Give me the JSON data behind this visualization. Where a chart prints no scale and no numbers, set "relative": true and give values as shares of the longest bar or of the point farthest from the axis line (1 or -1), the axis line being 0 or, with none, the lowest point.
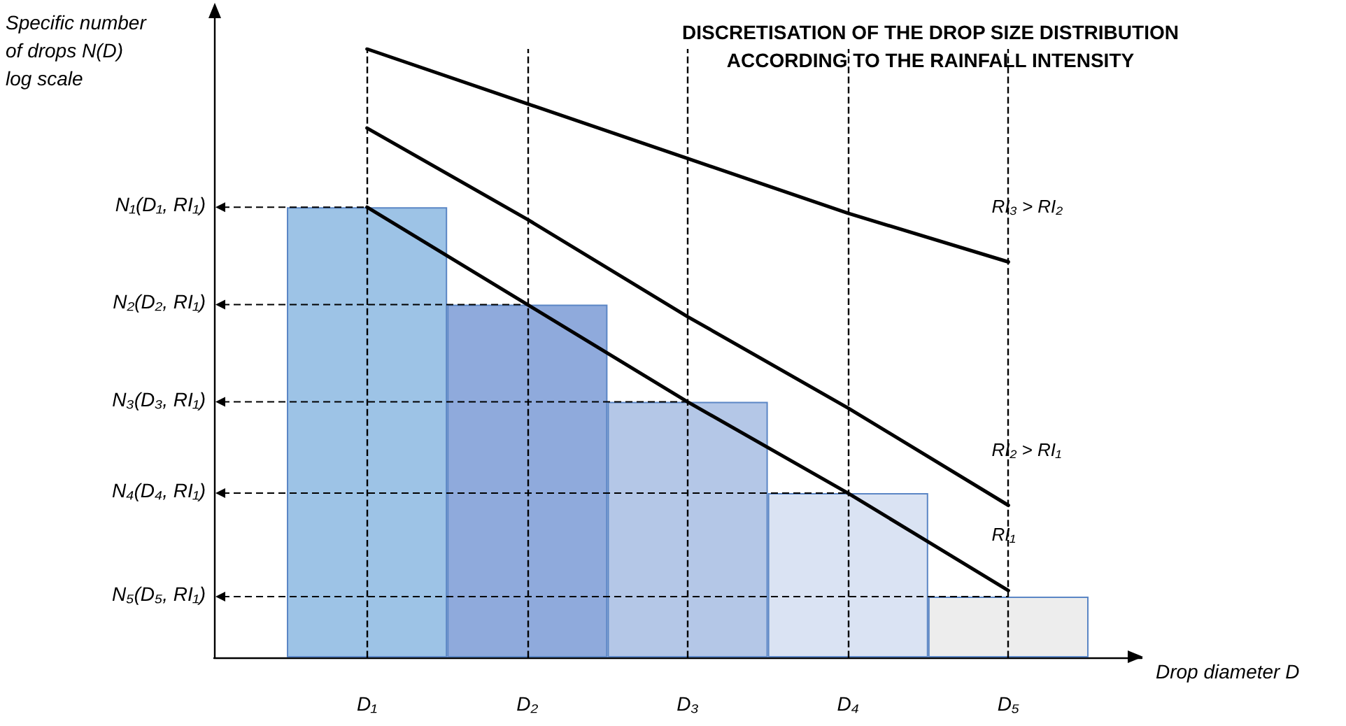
{
  "chart_data": {
    "type": "bar",
    "relative": true,
    "title": "DISCRETISATION OF THE DROP SIZE DISTRIBUTION\nACCORDING TO THE RAINFALL INTENSITY",
    "xlabel": "Drop diameter D",
    "ylabel": "Specific number\nof drops N(D)\nlog scale",
    "categories": [
      "D₁",
      "D₂",
      "D₃",
      "D₄",
      "D₅"
    ],
    "marker": "none",
    "series": [
      {
        "colors": [
          "#9dc3e6",
          "#8faadc",
          "#b4c7e7",
          "#dae3f3",
          "#ededed"
        ],
        "values": [
          0.74,
          0.58,
          0.42,
          0.27,
          0.1
        ]
      },
      {
        "type": "line",
        "name": "RI₁",
        "color": "#000000",
        "values": [
          0.74,
          0.58,
          0.42,
          0.27,
          0.11
        ]
      },
      {
        "type": "line",
        "name": "RI₂ > RI₁",
        "color": "#000000",
        "values": [
          0.87,
          0.72,
          0.56,
          0.41,
          0.25
        ]
      },
      {
        "type": "line",
        "name": "RI₃ > RI₂",
        "color": "#000000",
        "values": [
          1,
          0.91,
          0.82,
          0.73,
          0.65
        ]
      }
    ],
    "annotations": [
      {
        "text": "N₁(D₁, RI₁)",
        "x": "D₁",
        "y": 0.74
      },
      {
        "text": "N₂(D₂, RI₁)",
        "x": "D₂",
        "y": 0.58
      },
      {
        "text": "N₃(D₃, RI₁)",
        "x": "D₃",
        "y": 0.42
      },
      {
        "text": "N₄(D₄, RI₁)",
        "x": "D₄",
        "y": 0.27
      },
      {
        "text": "N₅(D₅, RI₁)",
        "x": "D₅",
        "y": 0.1
      }
    ],
    "ref_lines": [
      {
        "axis": "x",
        "value": "D₁",
        "line_style": "dashed",
        "color": "#000000"
      },
      {
        "axis": "x",
        "value": "D₂",
        "line_style": "dashed",
        "color": "#000000"
      },
      {
        "axis": "x",
        "value": "D₃",
        "line_style": "dashed",
        "color": "#000000"
      },
      {
        "axis": "x",
        "value": "D₄",
        "line_style": "dashed",
        "color": "#000000"
      },
      {
        "axis": "x",
        "value": "D₅",
        "line_style": "dashed",
        "color": "#000000"
      }
    ],
    "grid": false,
    "legend": false
  }
}
